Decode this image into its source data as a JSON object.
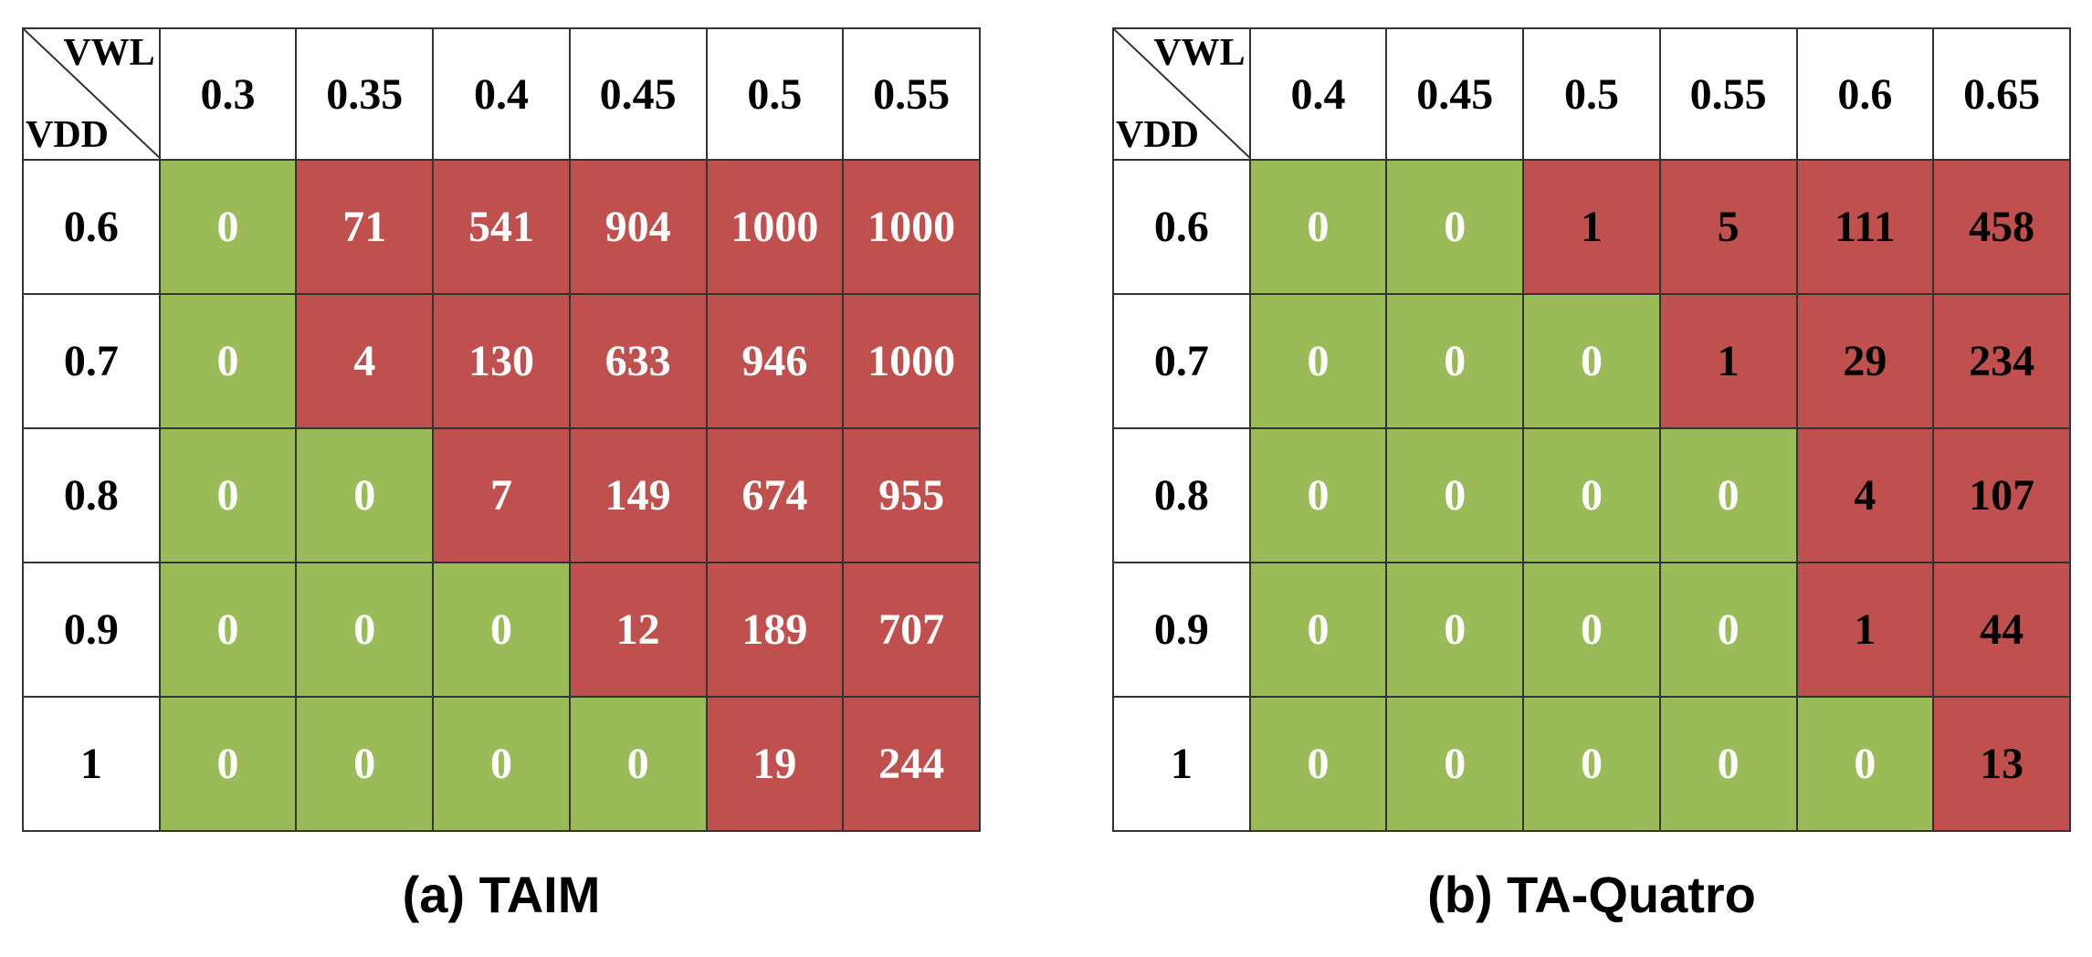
{
  "colors": {
    "pass": "#9bbb59",
    "fail": "#c0504d",
    "pass_text": "#ffffff",
    "fail_text_a": "#ffffff",
    "fail_text_b": "#000000"
  },
  "chart_data": [
    {
      "type": "table",
      "caption": "(a) TAIM",
      "corner_top": "VWL",
      "corner_bottom": "VDD",
      "columns": [
        "0.3",
        "0.35",
        "0.4",
        "0.45",
        "0.5",
        "0.55"
      ],
      "rows": [
        "0.6",
        "0.7",
        "0.8",
        "0.9",
        "1"
      ],
      "values": [
        [
          0,
          71,
          541,
          904,
          1000,
          1000
        ],
        [
          0,
          4,
          130,
          633,
          946,
          1000
        ],
        [
          0,
          0,
          7,
          149,
          674,
          955
        ],
        [
          0,
          0,
          0,
          12,
          189,
          707
        ],
        [
          0,
          0,
          0,
          0,
          19,
          244
        ]
      ]
    },
    {
      "type": "table",
      "caption": "(b) TA-Quatro",
      "corner_top": "VWL",
      "corner_bottom": "VDD",
      "columns": [
        "0.4",
        "0.45",
        "0.5",
        "0.55",
        "0.6",
        "0.65"
      ],
      "rows": [
        "0.6",
        "0.7",
        "0.8",
        "0.9",
        "1"
      ],
      "values": [
        [
          0,
          0,
          1,
          5,
          111,
          458
        ],
        [
          0,
          0,
          0,
          1,
          29,
          234
        ],
        [
          0,
          0,
          0,
          0,
          4,
          107
        ],
        [
          0,
          0,
          0,
          0,
          1,
          44
        ],
        [
          0,
          0,
          0,
          0,
          0,
          13
        ]
      ]
    }
  ]
}
